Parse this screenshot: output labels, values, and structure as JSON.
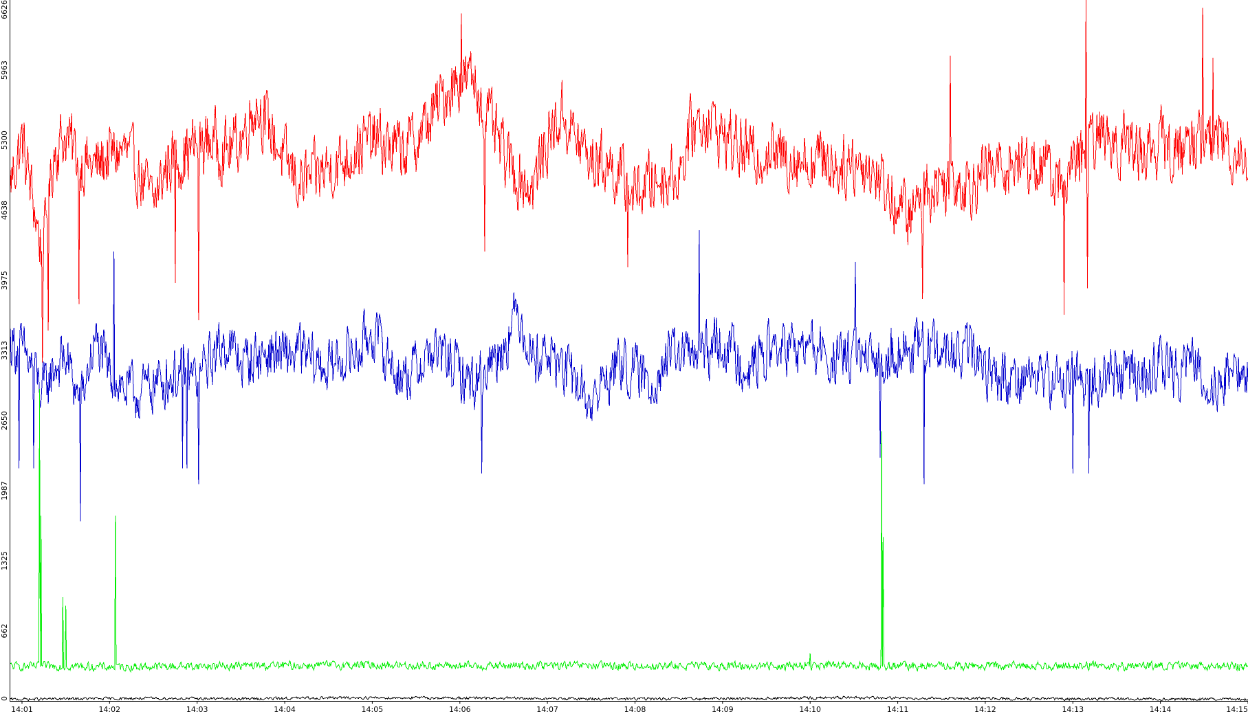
{
  "chart_data": {
    "type": "line",
    "title": "",
    "xlabel": "",
    "ylabel": "",
    "xlim": [
      "14:00:52",
      "14:15:00"
    ],
    "ylim": [
      0,
      6626
    ],
    "grid": false,
    "legend": "none",
    "y_ticks": [
      "0",
      "662",
      "1325",
      "1987",
      "2650",
      "3313",
      "3975",
      "4638",
      "5300",
      "5963",
      "6626"
    ],
    "x_ticks": [
      "14:01",
      "14:02",
      "14:03",
      "14:04",
      "14:05",
      "14:06",
      "14:07",
      "14:08",
      "14:09",
      "14:10",
      "14:11",
      "14:12",
      "14:13",
      "14:14",
      "14:15"
    ],
    "series": [
      {
        "color": "#ff0000",
        "noise": 420,
        "points": [
          [
            "14:00:52",
            4900
          ],
          [
            "14:01:00",
            5300
          ],
          [
            "14:01:08",
            4700
          ],
          [
            "14:01:14",
            4200
          ],
          [
            "14:01:22",
            5200
          ],
          [
            "14:01:30",
            5350
          ],
          [
            "14:01:40",
            5100
          ],
          [
            "14:01:50",
            5050
          ],
          [
            "14:02:00",
            5150
          ],
          [
            "14:02:10",
            5200
          ],
          [
            "14:02:20",
            5000
          ],
          [
            "14:02:30",
            4700
          ],
          [
            "14:02:40",
            5100
          ],
          [
            "14:02:50",
            5150
          ],
          [
            "14:03:00",
            5250
          ],
          [
            "14:03:10",
            5300
          ],
          [
            "14:03:20",
            5200
          ],
          [
            "14:03:30",
            5300
          ],
          [
            "14:03:40",
            5650
          ],
          [
            "14:03:50",
            5400
          ],
          [
            "14:04:00",
            5100
          ],
          [
            "14:04:10",
            4900
          ],
          [
            "14:04:20",
            4950
          ],
          [
            "14:04:30",
            5050
          ],
          [
            "14:04:40",
            5100
          ],
          [
            "14:04:50",
            5250
          ],
          [
            "14:05:00",
            5300
          ],
          [
            "14:05:10",
            5250
          ],
          [
            "14:05:20",
            5200
          ],
          [
            "14:05:30",
            5300
          ],
          [
            "14:05:40",
            5500
          ],
          [
            "14:05:50",
            5750
          ],
          [
            "14:06:00",
            5900
          ],
          [
            "14:06:10",
            5850
          ],
          [
            "14:06:20",
            5500
          ],
          [
            "14:06:30",
            5150
          ],
          [
            "14:06:40",
            4950
          ],
          [
            "14:06:50",
            4850
          ],
          [
            "14:07:00",
            5300
          ],
          [
            "14:07:10",
            5550
          ],
          [
            "14:07:20",
            5300
          ],
          [
            "14:07:30",
            5100
          ],
          [
            "14:07:40",
            5100
          ],
          [
            "14:07:50",
            4950
          ],
          [
            "14:08:00",
            4800
          ],
          [
            "14:08:10",
            4900
          ],
          [
            "14:08:20",
            4950
          ],
          [
            "14:08:30",
            5000
          ],
          [
            "14:08:40",
            5450
          ],
          [
            "14:08:50",
            5500
          ],
          [
            "14:09:00",
            5350
          ],
          [
            "14:09:10",
            5250
          ],
          [
            "14:09:20",
            5150
          ],
          [
            "14:09:30",
            5200
          ],
          [
            "14:09:40",
            5150
          ],
          [
            "14:09:50",
            5150
          ],
          [
            "14:10:00",
            5100
          ],
          [
            "14:10:10",
            5150
          ],
          [
            "14:10:20",
            5050
          ],
          [
            "14:10:30",
            5100
          ],
          [
            "14:10:40",
            5050
          ],
          [
            "14:10:50",
            4900
          ],
          [
            "14:11:00",
            4650
          ],
          [
            "14:11:10",
            4600
          ],
          [
            "14:11:20",
            4850
          ],
          [
            "14:11:30",
            4900
          ],
          [
            "14:11:40",
            4950
          ],
          [
            "14:11:50",
            4900
          ],
          [
            "14:12:00",
            5000
          ],
          [
            "14:12:10",
            5050
          ],
          [
            "14:12:20",
            5100
          ],
          [
            "14:12:30",
            5100
          ],
          [
            "14:12:40",
            5050
          ],
          [
            "14:12:50",
            4900
          ],
          [
            "14:13:00",
            5000
          ],
          [
            "14:13:10",
            5250
          ],
          [
            "14:13:20",
            5350
          ],
          [
            "14:13:30",
            5300
          ],
          [
            "14:13:40",
            5250
          ],
          [
            "14:13:50",
            5200
          ],
          [
            "14:14:00",
            5300
          ],
          [
            "14:14:10",
            5150
          ],
          [
            "14:14:20",
            5300
          ],
          [
            "14:14:30",
            5250
          ],
          [
            "14:14:40",
            5350
          ],
          [
            "14:14:50",
            5200
          ],
          [
            "14:15:00",
            5150
          ]
        ],
        "spikes": [
          [
            "14:01:14",
            3200
          ],
          [
            "14:01:18",
            3500
          ],
          [
            "14:01:39",
            3750
          ],
          [
            "14:02:45",
            3950
          ],
          [
            "14:03:01",
            3600
          ],
          [
            "14:06:17",
            4250
          ],
          [
            "14:07:55",
            4100
          ],
          [
            "14:11:17",
            3800
          ],
          [
            "14:12:54",
            3650
          ],
          [
            "14:13:10",
            3900
          ],
          [
            "14:13:09",
            6626
          ],
          [
            "14:14:29",
            6550
          ],
          [
            "14:14:36",
            6080
          ],
          [
            "14:11:36",
            6100
          ],
          [
            "14:06:01",
            6500
          ]
        ]
      },
      {
        "color": "#0000cc",
        "noise": 360,
        "points": [
          [
            "14:00:52",
            3400
          ],
          [
            "14:01:00",
            3300
          ],
          [
            "14:01:08",
            3150
          ],
          [
            "14:01:14",
            2900
          ],
          [
            "14:01:22",
            3150
          ],
          [
            "14:01:30",
            3250
          ],
          [
            "14:01:40",
            2800
          ],
          [
            "14:01:50",
            3400
          ],
          [
            "14:02:00",
            3100
          ],
          [
            "14:02:10",
            2950
          ],
          [
            "14:02:20",
            2900
          ],
          [
            "14:02:30",
            3000
          ],
          [
            "14:02:40",
            3050
          ],
          [
            "14:02:50",
            3100
          ],
          [
            "14:03:00",
            3050
          ],
          [
            "14:03:10",
            3250
          ],
          [
            "14:03:20",
            3400
          ],
          [
            "14:03:30",
            3200
          ],
          [
            "14:03:40",
            3250
          ],
          [
            "14:03:50",
            3300
          ],
          [
            "14:04:00",
            3250
          ],
          [
            "14:04:10",
            3300
          ],
          [
            "14:04:20",
            3200
          ],
          [
            "14:04:30",
            3150
          ],
          [
            "14:04:40",
            3250
          ],
          [
            "14:04:50",
            3300
          ],
          [
            "14:05:00",
            3500
          ],
          [
            "14:05:10",
            3250
          ],
          [
            "14:05:20",
            3050
          ],
          [
            "14:05:30",
            3150
          ],
          [
            "14:05:40",
            3300
          ],
          [
            "14:05:50",
            3250
          ],
          [
            "14:06:00",
            3100
          ],
          [
            "14:06:10",
            3000
          ],
          [
            "14:06:20",
            3200
          ],
          [
            "14:06:30",
            3350
          ],
          [
            "14:06:40",
            3700
          ],
          [
            "14:06:50",
            3250
          ],
          [
            "14:07:00",
            3300
          ],
          [
            "14:07:10",
            3150
          ],
          [
            "14:07:20",
            3000
          ],
          [
            "14:07:30",
            2800
          ],
          [
            "14:07:40",
            3050
          ],
          [
            "14:07:50",
            3200
          ],
          [
            "14:08:00",
            3100
          ],
          [
            "14:08:10",
            3000
          ],
          [
            "14:08:20",
            3200
          ],
          [
            "14:08:30",
            3300
          ],
          [
            "14:08:40",
            3250
          ],
          [
            "14:08:50",
            3300
          ],
          [
            "14:09:00",
            3400
          ],
          [
            "14:09:10",
            3250
          ],
          [
            "14:09:20",
            3150
          ],
          [
            "14:09:30",
            3300
          ],
          [
            "14:09:40",
            3350
          ],
          [
            "14:09:50",
            3300
          ],
          [
            "14:10:00",
            3350
          ],
          [
            "14:10:10",
            3250
          ],
          [
            "14:10:20",
            3200
          ],
          [
            "14:10:30",
            3300
          ],
          [
            "14:10:40",
            3150
          ],
          [
            "14:10:50",
            3250
          ],
          [
            "14:11:00",
            3350
          ],
          [
            "14:11:10",
            3300
          ],
          [
            "14:11:20",
            3350
          ],
          [
            "14:11:30",
            3300
          ],
          [
            "14:11:40",
            3250
          ],
          [
            "14:11:50",
            3300
          ],
          [
            "14:12:00",
            3150
          ],
          [
            "14:12:10",
            3050
          ],
          [
            "14:12:20",
            3050
          ],
          [
            "14:12:30",
            3100
          ],
          [
            "14:12:40",
            3050
          ],
          [
            "14:12:50",
            3000
          ],
          [
            "14:13:00",
            3100
          ],
          [
            "14:13:10",
            3000
          ],
          [
            "14:13:20",
            3050
          ],
          [
            "14:13:30",
            3100
          ],
          [
            "14:13:40",
            3100
          ],
          [
            "14:13:50",
            3050
          ],
          [
            "14:14:00",
            3200
          ],
          [
            "14:14:10",
            3100
          ],
          [
            "14:14:20",
            3250
          ],
          [
            "14:14:30",
            3050
          ],
          [
            "14:14:40",
            3000
          ],
          [
            "14:14:50",
            3150
          ],
          [
            "14:15:00",
            3050
          ]
        ],
        "spikes": [
          [
            "14:00:58",
            2200
          ],
          [
            "14:01:08",
            2200
          ],
          [
            "14:01:40",
            1700
          ],
          [
            "14:02:50",
            2200
          ],
          [
            "14:02:53",
            2200
          ],
          [
            "14:03:01",
            2050
          ],
          [
            "14:06:15",
            2150
          ],
          [
            "14:10:48",
            2300
          ],
          [
            "14:11:18",
            2050
          ],
          [
            "14:13:00",
            2150
          ],
          [
            "14:13:11",
            2150
          ],
          [
            "14:08:44",
            4450
          ],
          [
            "14:10:31",
            4150
          ],
          [
            "14:02:03",
            4250
          ]
        ]
      },
      {
        "color": "#00ee00",
        "noise": 55,
        "points": [
          [
            "14:00:52",
            330
          ],
          [
            "14:01:00",
            325
          ],
          [
            "14:01:30",
            330
          ],
          [
            "14:02:00",
            320
          ],
          [
            "14:03:00",
            330
          ],
          [
            "14:04:00",
            335
          ],
          [
            "14:05:00",
            340
          ],
          [
            "14:06:00",
            330
          ],
          [
            "14:07:00",
            335
          ],
          [
            "14:08:00",
            330
          ],
          [
            "14:09:00",
            330
          ],
          [
            "14:10:00",
            335
          ],
          [
            "14:11:00",
            330
          ],
          [
            "14:12:00",
            330
          ],
          [
            "14:13:00",
            335
          ],
          [
            "14:14:00",
            330
          ],
          [
            "14:15:00",
            330
          ]
        ],
        "spikes": [
          [
            "14:01:12",
            2950
          ],
          [
            "14:01:13",
            1750
          ],
          [
            "14:01:28",
            980
          ],
          [
            "14:01:30",
            900
          ],
          [
            "14:02:04",
            1750
          ],
          [
            "14:10:49",
            2550
          ],
          [
            "14:10:50",
            1550
          ],
          [
            "14:10:00",
            450
          ]
        ]
      },
      {
        "color": "#000000",
        "noise": 18,
        "points": [
          [
            "14:00:52",
            15
          ],
          [
            "14:01:30",
            20
          ],
          [
            "14:02:30",
            25
          ],
          [
            "14:03:30",
            20
          ],
          [
            "14:04:30",
            30
          ],
          [
            "14:05:30",
            30
          ],
          [
            "14:06:30",
            25
          ],
          [
            "14:07:30",
            20
          ],
          [
            "14:08:30",
            20
          ],
          [
            "14:09:30",
            25
          ],
          [
            "14:10:30",
            30
          ],
          [
            "14:11:30",
            25
          ],
          [
            "14:12:30",
            20
          ],
          [
            "14:13:30",
            20
          ],
          [
            "14:14:30",
            15
          ],
          [
            "14:15:00",
            15
          ]
        ],
        "spikes": []
      }
    ]
  }
}
